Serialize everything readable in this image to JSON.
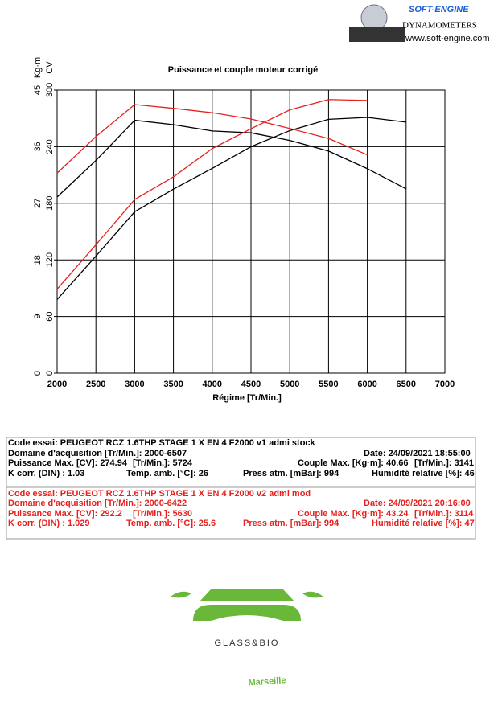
{
  "header": {
    "brand": "SOFT-ENGINE",
    "subtitle": "DYNAMOMETERS",
    "url": "www.soft-engine.com"
  },
  "chart_data": {
    "type": "line",
    "title": "Puissance et couple moteur corrigé",
    "xlabel": "Régime [Tr/Min.]",
    "ylabel": "Kg·m",
    "y2label": "CV",
    "x": [
      2000,
      2500,
      3000,
      3500,
      4000,
      4500,
      5000,
      5500,
      6000,
      6500
    ],
    "xlim": [
      2000,
      7000
    ],
    "xticks": [
      2000,
      2500,
      3000,
      3500,
      4000,
      4500,
      5000,
      5500,
      6000,
      6500,
      7000
    ],
    "ylim": [
      0,
      45
    ],
    "yticks": [
      0,
      9,
      18,
      27,
      36,
      45
    ],
    "y2lim": [
      0,
      300
    ],
    "y2ticks": [
      0,
      60,
      120,
      180,
      240,
      300
    ],
    "grid": true,
    "series": [
      {
        "name": "v1 admi stock puissance",
        "color": "#000000",
        "axis": "y2",
        "values": [
          78,
          124,
          171,
          195,
          217,
          240,
          257,
          269,
          271,
          266
        ]
      },
      {
        "name": "v1 admi stock couple",
        "color": "#000000",
        "axis": "y",
        "values": [
          28.0,
          33.8,
          40.2,
          39.5,
          38.5,
          38.2,
          37.0,
          35.3,
          32.5,
          29.3
        ]
      },
      {
        "name": "v2 admi mod puissance",
        "color": "#e8211f",
        "axis": "y2",
        "values": [
          89,
          136,
          184,
          208,
          238,
          259,
          279,
          290,
          289,
          null
        ]
      },
      {
        "name": "v2 admi mod couple",
        "color": "#e8211f",
        "axis": "y",
        "values": [
          31.8,
          37.6,
          42.7,
          42.1,
          41.4,
          40.4,
          38.9,
          37.3,
          34.7,
          null
        ]
      }
    ]
  },
  "runs": [
    {
      "color": "#000000",
      "rows": [
        [
          "Code essai: PEUGEOT RCZ 1.6THP STAGE 1 X EN 4 F2000 v1 admi stock"
        ],
        [
          "Domaine d'acquisition [Tr/Min.]: 2000-6507",
          "Date: 24/09/2021   18:55:00"
        ],
        [
          "Puissance Max. [CV]: 274.94",
          "[Tr/Min.]: 5724",
          "Couple Max. [Kg·m]: 40.66",
          "[Tr/Min.]: 3141"
        ],
        [
          "K corr. (DIN) : 1.03",
          "Temp. amb. [°C]: 26",
          "Press atm. [mBar]: 994",
          "Humidité relative [%]: 46"
        ]
      ]
    },
    {
      "color": "#e8211f",
      "rows": [
        [
          "Code essai: PEUGEOT RCZ 1.6THP STAGE 1 X EN 4 F2000 v2 admi mod"
        ],
        [
          "Domaine d'acquisition [Tr/Min.]: 2000-6422",
          "Date: 24/09/2021   20:16:00"
        ],
        [
          "Puissance Max. [CV]: 292.2",
          "[Tr/Min.]: 5630",
          "Couple Max. [Kg·m]: 43.24",
          "[Tr/Min.]: 3114"
        ],
        [
          "K corr. (DIN) : 1.029",
          "Temp. amb. [°C]: 25.6",
          "Press atm. [mBar]: 994",
          "Humidité relative [%]: 47"
        ]
      ]
    }
  ],
  "footer": {
    "logo": "GLASS&BIO",
    "city": "Marseille"
  }
}
